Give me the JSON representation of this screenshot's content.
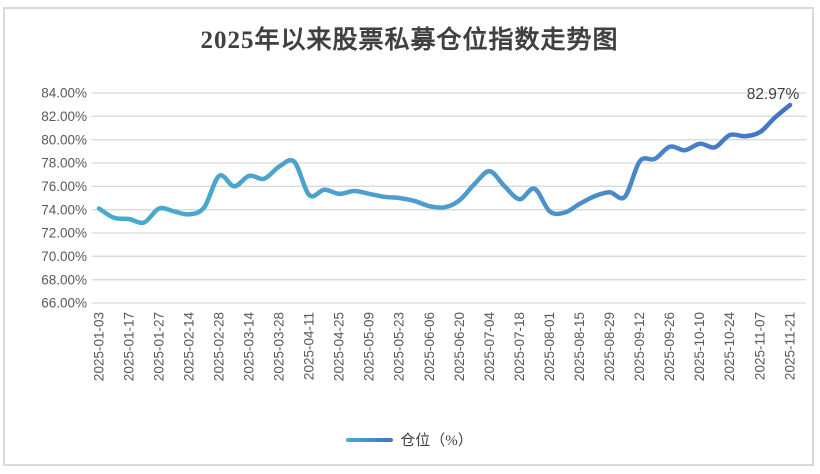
{
  "chart": {
    "title": "2025年以来股票私募仓位指数走势图",
    "legend_label": "仓位（%）",
    "end_label": "82.97%"
  },
  "chart_data": {
    "type": "line",
    "title": "2025年以来股票私募仓位指数走势图",
    "series": [
      {
        "name": "仓位（%）",
        "values": [
          74.1,
          73.3,
          73.2,
          72.9,
          74.1,
          73.85,
          73.6,
          74.2,
          76.9,
          76.0,
          76.9,
          76.65,
          77.7,
          78.1,
          75.25,
          75.7,
          75.35,
          75.6,
          75.35,
          75.1,
          75.0,
          74.75,
          74.3,
          74.2,
          74.8,
          76.2,
          77.3,
          76.0,
          74.9,
          75.8,
          73.85,
          73.75,
          74.5,
          75.15,
          75.5,
          75.1,
          78.15,
          78.35,
          79.4,
          79.1,
          79.65,
          79.35,
          80.4,
          80.3,
          80.65,
          81.9,
          82.97
        ]
      }
    ],
    "x_tick_labels": [
      "2025-01-03",
      "2025-01-17",
      "2025-01-27",
      "2025-02-14",
      "2025-02-28",
      "2025-03-14",
      "2025-03-28",
      "2025-04-11",
      "2025-04-25",
      "2025-05-09",
      "2025-05-23",
      "2025-06-06",
      "2025-06-20",
      "2025-07-04",
      "2025-07-18",
      "2025-08-01",
      "2025-08-15",
      "2025-08-29",
      "2025-09-12",
      "2025-09-26",
      "2025-10-10",
      "2025-10-24",
      "2025-11-07",
      "2025-11-21"
    ],
    "x_label_every": 2,
    "y_tick_labels": [
      "84.00%",
      "82.00%",
      "80.00%",
      "78.00%",
      "76.00%",
      "74.00%",
      "72.00%",
      "70.00%",
      "68.00%",
      "66.00%"
    ],
    "ylim": [
      66,
      84
    ],
    "y_step": 2,
    "end_point_label": "82.97%",
    "grid": true,
    "legend_position": "bottom",
    "line_gradient_start": "#48ABCB",
    "line_gradient_end": "#4472C4",
    "grid_color": "#D9D9D9",
    "axis_text_color": "#595959",
    "label_text_color": "#404040"
  }
}
